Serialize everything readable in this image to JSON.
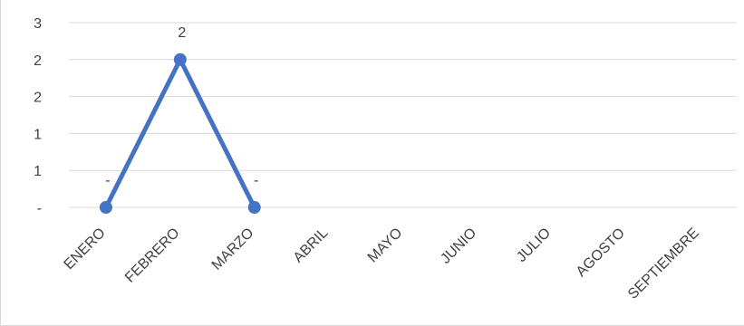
{
  "chart_data": {
    "type": "line",
    "title": "",
    "xlabel": "",
    "ylabel": "",
    "categories": [
      "ENERO",
      "FEBRERO",
      "MARZO",
      "ABRIL",
      "MAYO",
      "JUNIO",
      "JULIO",
      "AGOSTO",
      "SEPTIEMBRE"
    ],
    "y_tick_labels": [
      "-",
      "1",
      "1",
      "2",
      "2",
      "3"
    ],
    "ylim": [
      0,
      2.5
    ],
    "grid": true,
    "legend": "none",
    "series": [
      {
        "values": [
          0,
          2,
          0,
          null,
          null,
          null,
          null,
          null,
          null
        ],
        "data_labels": [
          "-",
          "2",
          "-",
          null,
          null,
          null,
          null,
          null,
          null
        ],
        "color": "#4472C4"
      }
    ]
  }
}
